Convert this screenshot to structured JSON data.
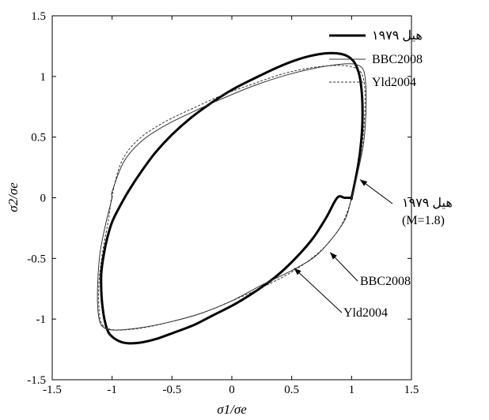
{
  "chart_data": {
    "type": "line",
    "xlabel": "σ1/σe",
    "ylabel": "σ2/σe",
    "xlim": [
      -1.5,
      1.5
    ],
    "ylim": [
      -1.5,
      1.5
    ],
    "xticks": [
      "-1.5",
      "-1",
      "-0.5",
      "0",
      "0.5",
      "1",
      "1.5"
    ],
    "yticks": [
      "-1.5",
      "-1",
      "-0.5",
      "0",
      "0.5",
      "1",
      "1.5"
    ],
    "grid": false,
    "legend_position": "top-right",
    "series": [
      {
        "name": "هیل ۱۹۷۹",
        "style": "thick-solid",
        "x": [
          1.0,
          1.03,
          1.06,
          1.08,
          1.09,
          1.09,
          1.08,
          1.06,
          1.02,
          0.96,
          0.88,
          0.78,
          0.66,
          0.52,
          0.37,
          0.2,
          0.02,
          -0.16,
          -0.34,
          -0.5,
          -0.64,
          -0.76,
          -0.86,
          -0.94,
          -1.0,
          -1.04,
          -1.07,
          -1.09,
          -1.09,
          -1.08,
          -1.06,
          -1.03,
          -0.98,
          -0.92,
          -0.84,
          -0.74,
          -0.62,
          -0.48,
          -0.32,
          -0.16,
          0.02,
          0.2,
          0.38,
          0.54,
          0.68,
          0.79,
          0.88,
          0.94,
          0.98,
          1.0
        ],
        "y": [
          0.0,
          0.14,
          0.3,
          0.46,
          0.62,
          0.78,
          0.92,
          1.03,
          1.12,
          1.17,
          1.19,
          1.19,
          1.17,
          1.13,
          1.07,
          0.99,
          0.9,
          0.79,
          0.66,
          0.52,
          0.37,
          0.21,
          0.06,
          -0.08,
          -0.2,
          -0.33,
          -0.47,
          -0.62,
          -0.77,
          -0.9,
          -1.02,
          -1.11,
          -1.16,
          -1.19,
          -1.2,
          -1.19,
          -1.16,
          -1.11,
          -1.05,
          -0.97,
          -0.88,
          -0.77,
          -0.64,
          -0.49,
          -0.33,
          -0.16,
          0.0,
          0.0,
          0.0,
          0.0
        ]
      },
      {
        "name": "BBC2008",
        "style": "thin-solid",
        "x": [
          1.0,
          1.05,
          1.1,
          1.12,
          1.12,
          1.1,
          1.03,
          0.9,
          0.7,
          0.45,
          0.2,
          -0.05,
          -0.3,
          -0.55,
          -0.75,
          -0.9,
          -1.0,
          -1.0,
          -1.05,
          -1.1,
          -1.12,
          -1.12,
          -1.1,
          -1.05,
          -0.95,
          -0.75,
          -0.5,
          -0.25,
          0.0,
          0.25,
          0.5,
          0.7,
          0.85,
          0.95,
          1.0
        ],
        "y": [
          0.0,
          0.2,
          0.45,
          0.7,
          0.9,
          1.05,
          1.1,
          1.1,
          1.07,
          1.01,
          0.93,
          0.83,
          0.72,
          0.6,
          0.47,
          0.3,
          0.05,
          0.0,
          -0.2,
          -0.45,
          -0.7,
          -0.9,
          -1.03,
          -1.08,
          -1.09,
          -1.07,
          -1.02,
          -0.95,
          -0.85,
          -0.72,
          -0.6,
          -0.48,
          -0.32,
          -0.17,
          0.0
        ]
      },
      {
        "name": "Yld2004",
        "style": "dashed",
        "x": [
          1.0,
          1.05,
          1.09,
          1.11,
          1.11,
          1.08,
          1.0,
          0.85,
          0.65,
          0.42,
          0.18,
          -0.07,
          -0.32,
          -0.57,
          -0.78,
          -0.92,
          -1.0,
          -1.03,
          -1.08,
          -1.11,
          -1.11,
          -1.09,
          -1.03,
          -0.92,
          -0.73,
          -0.5,
          -0.25,
          0.0,
          0.25,
          0.52,
          0.75,
          0.9,
          0.97,
          1.0
        ],
        "y": [
          0.0,
          0.2,
          0.45,
          0.7,
          0.9,
          1.03,
          1.08,
          1.09,
          1.07,
          1.02,
          0.94,
          0.85,
          0.74,
          0.62,
          0.48,
          0.3,
          0.02,
          -0.18,
          -0.45,
          -0.7,
          -0.9,
          -1.03,
          -1.08,
          -1.09,
          -1.07,
          -1.02,
          -0.95,
          -0.85,
          -0.74,
          -0.6,
          -0.43,
          -0.25,
          -0.1,
          0.0
        ]
      }
    ],
    "annotations": [
      {
        "label_lines": [
          "هیل ۱۹۷۹",
          "(M=1.8)"
        ],
        "target": [
          1.07,
          0.15
        ]
      },
      {
        "label_lines": [
          "BBC2008"
        ],
        "target": [
          0.82,
          -0.45
        ]
      },
      {
        "label_lines": [
          "Yld2004"
        ],
        "target": [
          0.52,
          -0.58
        ]
      }
    ]
  }
}
